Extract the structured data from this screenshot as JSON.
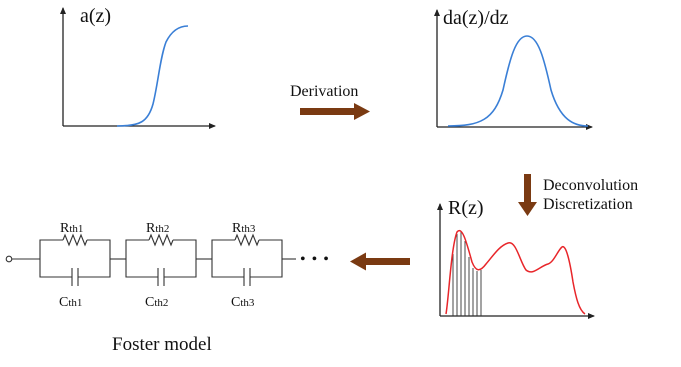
{
  "plots": {
    "a_z": {
      "label": "a(z)"
    },
    "da_dz": {
      "label": "da(z)/dz"
    },
    "r_z": {
      "label": "R(z)"
    }
  },
  "steps": {
    "derivation": "Derivation",
    "deconvolution": "Deconvolution",
    "discretization": "Discretization"
  },
  "foster": {
    "title": "Foster model",
    "resistors": [
      {
        "main": "R",
        "sub": "th1"
      },
      {
        "main": "R",
        "sub": "th2"
      },
      {
        "main": "R",
        "sub": "th3"
      }
    ],
    "capacitors": [
      {
        "main": "C",
        "sub": "th1"
      },
      {
        "main": "C",
        "sub": "th2"
      },
      {
        "main": "C",
        "sub": "th3"
      }
    ],
    "continuation": "• • •"
  },
  "colors": {
    "curve_blue": "#3a7fd6",
    "curve_red": "#e8262a",
    "arrow_brown": "#7a3a12",
    "axis": "#222222"
  },
  "icons": {
    "process_arrow": "thick-arrow"
  }
}
